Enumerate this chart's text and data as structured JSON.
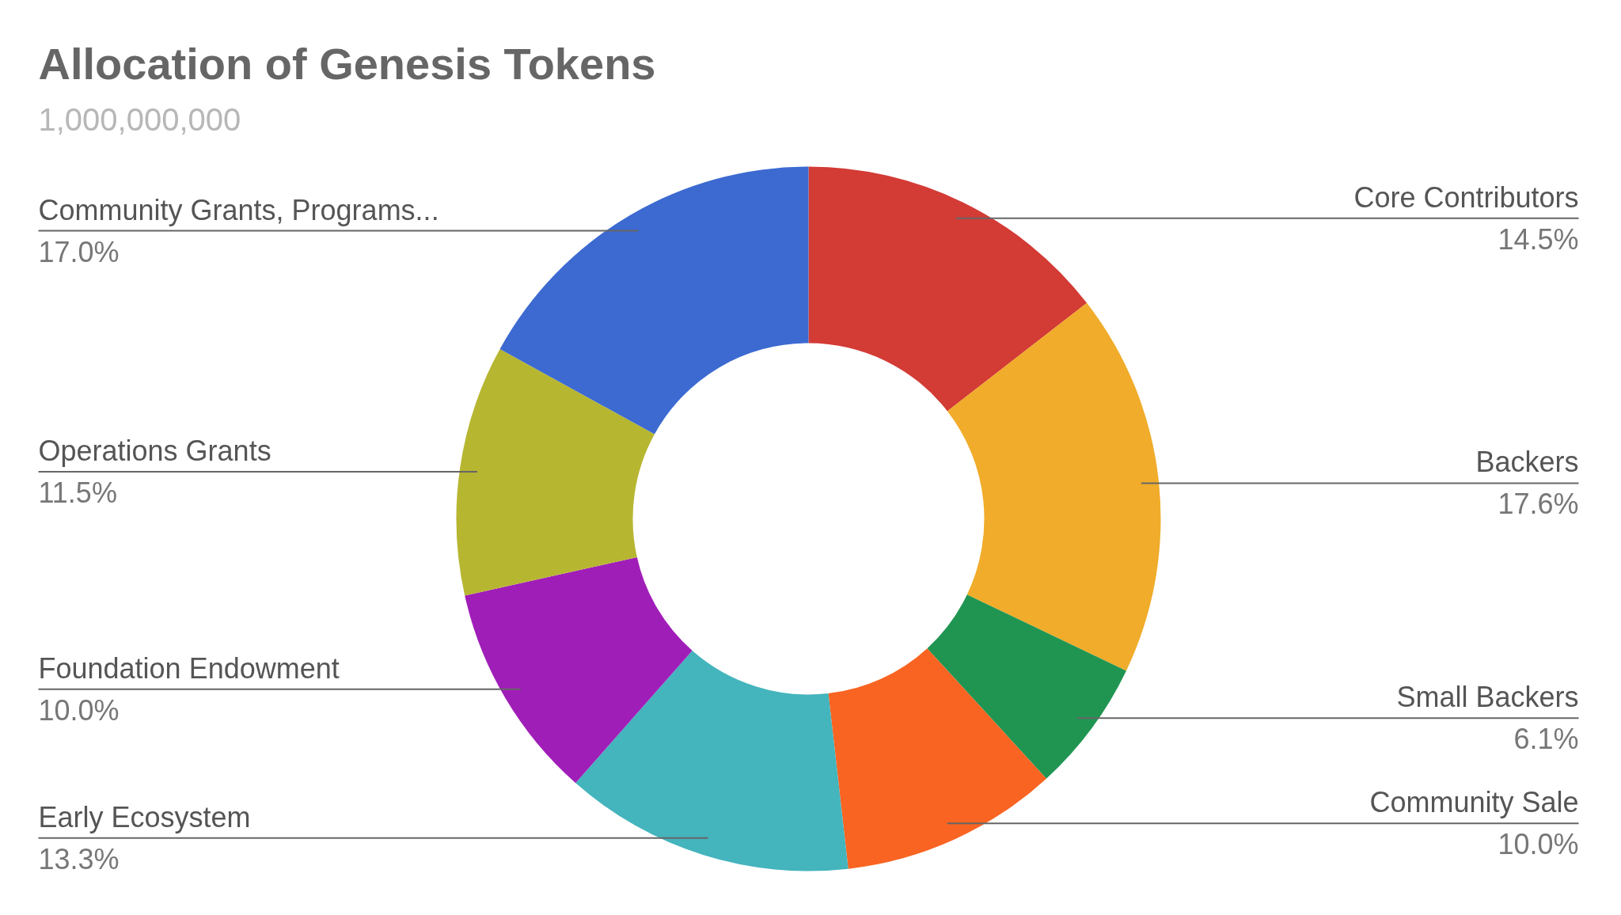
{
  "chart_data": {
    "type": "donut",
    "title": "Allocation of Genesis Tokens",
    "subtitle": "1,000,000,000",
    "categories": [
      "Core Contributors",
      "Backers",
      "Small Backers",
      "Community Sale",
      "Early Ecosystem",
      "Foundation Endowment",
      "Operations Grants",
      "Community Grants, Programs..."
    ],
    "values": [
      14.5,
      17.6,
      6.1,
      10.0,
      13.3,
      10.0,
      11.5,
      17.0
    ],
    "colors": [
      "#d33b35",
      "#f0ac2a",
      "#209552",
      "#f96422",
      "#44b4bd",
      "#a01eb8",
      "#b7b631",
      "#3c6ad1"
    ],
    "value_labels": [
      "14.5%",
      "17.6%",
      "6.1%",
      "10.0%",
      "13.3%",
      "10.0%",
      "11.5%",
      "17.0%"
    ]
  }
}
